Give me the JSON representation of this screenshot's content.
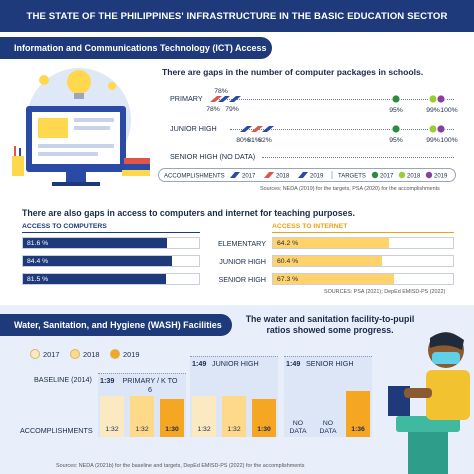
{
  "title": "THE STATE OF THE PHILIPPINES' INFRASTRUCTURE IN THE BASIC EDUCATION SECTOR",
  "ict": {
    "section_title": "Information and Communications Technology (ICT)  Access",
    "gap_title": "There are gaps in the number of computer packages in schools.",
    "rows": [
      {
        "label": "PRIMARY",
        "acc": [
          "78%",
          "78%",
          "79%"
        ],
        "targets": [
          "95%",
          "99%",
          "100%"
        ]
      },
      {
        "label": "JUNIOR HIGH",
        "acc": [
          "80%",
          "81%",
          "82%"
        ],
        "targets": [
          "95%",
          "99%",
          "100%"
        ]
      },
      {
        "label": "SENIOR HIGH (NO DATA)"
      }
    ],
    "legend": {
      "accomplishments": "ACCOMPLISHMENTS",
      "targets": "TARGETS",
      "years": [
        "2017",
        "2018",
        "2019"
      ],
      "acc_colors": [
        "#2a4aa6",
        "#e0554a",
        "#2a4aa6"
      ],
      "target_colors": [
        "#2e8b3e",
        "#9acd32",
        "#8a3fa0"
      ]
    },
    "sources1": "Sources: NEDA (2019) for the targets, PSA (2020) for the accomplishments",
    "access_title": "There are also gaps in access to computers and internet for teaching purposes.",
    "computers_head": "ACCESS TO COMPUTERS",
    "internet_head": "ACCESS TO INTERNET",
    "levels": [
      "ELEMENTARY",
      "JUNIOR HIGH",
      "SENIOR HIGH"
    ],
    "computers": [
      {
        "label": "81.6 %",
        "value": 81.6
      },
      {
        "label": "84.4 %",
        "value": 84.4
      },
      {
        "label": "81.5 %",
        "value": 81.5
      }
    ],
    "internet": [
      {
        "label": "64.2 %",
        "value": 64.2
      },
      {
        "label": "60.4 %",
        "value": 60.4
      },
      {
        "label": "67.3 %",
        "value": 67.3
      }
    ],
    "sources2": "SOURCES: PSA (2021); DepEd EMISD-PS (2022)"
  },
  "wash": {
    "section_title": "Water, Sanitation, and Hygiene (WASH) Facilities",
    "subtitle": "The water and sanitation facility-to-pupil ratios showed some progress.",
    "years": [
      "2017",
      "2018",
      "2019"
    ],
    "year_colors": [
      "#fbe9c2",
      "#ffd98a",
      "#f5a623"
    ],
    "baseline_label": "BASELINE (2014)",
    "acc_label": "ACCOMPLISHMENTS",
    "groups": [
      {
        "ratio": "1:39",
        "name": "PRIMARY / K TO 6",
        "bars": [
          "1:32",
          "1:32",
          "1:30"
        ]
      },
      {
        "ratio": "1:49",
        "name": "JUNIOR HIGH",
        "bars": [
          "1:32",
          "1:32",
          "1:30"
        ]
      },
      {
        "ratio": "1:49",
        "name": "SENIOR HIGH",
        "bars": [
          "NO DATA",
          "NO DATA",
          "1:36"
        ]
      }
    ],
    "sources": "Sources: NEDA (2021b) for the baseline and targets, DepEd EMISD-PS (2022) for the accomplishments"
  },
  "chart_data": [
    {
      "type": "scatter",
      "title": "There are gaps in the number of computer packages in schools.",
      "categories": [
        "PRIMARY",
        "JUNIOR HIGH",
        "SENIOR HIGH (NO DATA)"
      ],
      "series": [
        {
          "name": "ACCOMPLISHMENTS 2017",
          "values": [
            78,
            80,
            null
          ]
        },
        {
          "name": "ACCOMPLISHMENTS 2018",
          "values": [
            78,
            81,
            null
          ]
        },
        {
          "name": "ACCOMPLISHMENTS 2019",
          "values": [
            79,
            82,
            null
          ]
        },
        {
          "name": "TARGETS 2017",
          "values": [
            95,
            95,
            null
          ]
        },
        {
          "name": "TARGETS 2018",
          "values": [
            99,
            99,
            null
          ]
        },
        {
          "name": "TARGETS 2019",
          "values": [
            100,
            100,
            null
          ]
        }
      ]
    },
    {
      "type": "bar",
      "title": "There are also gaps in access to computers and internet for teaching purposes.",
      "categories": [
        "ELEMENTARY",
        "JUNIOR HIGH",
        "SENIOR HIGH"
      ],
      "series": [
        {
          "name": "ACCESS TO COMPUTERS",
          "values": [
            81.6,
            84.4,
            81.5
          ]
        },
        {
          "name": "ACCESS TO INTERNET",
          "values": [
            64.2,
            60.4,
            67.3
          ]
        }
      ],
      "ylim": [
        0,
        100
      ]
    },
    {
      "type": "bar",
      "title": "The water and sanitation facility-to-pupil ratios showed some progress.",
      "categories": [
        "PRIMARY / K TO 6",
        "JUNIOR HIGH",
        "SENIOR HIGH"
      ],
      "baseline": [
        "1:39",
        "1:49",
        "1:49"
      ],
      "series": [
        {
          "name": "2017",
          "values": [
            32,
            32,
            null
          ]
        },
        {
          "name": "2018",
          "values": [
            32,
            32,
            null
          ]
        },
        {
          "name": "2019",
          "values": [
            30,
            30,
            36
          ]
        }
      ]
    }
  ]
}
